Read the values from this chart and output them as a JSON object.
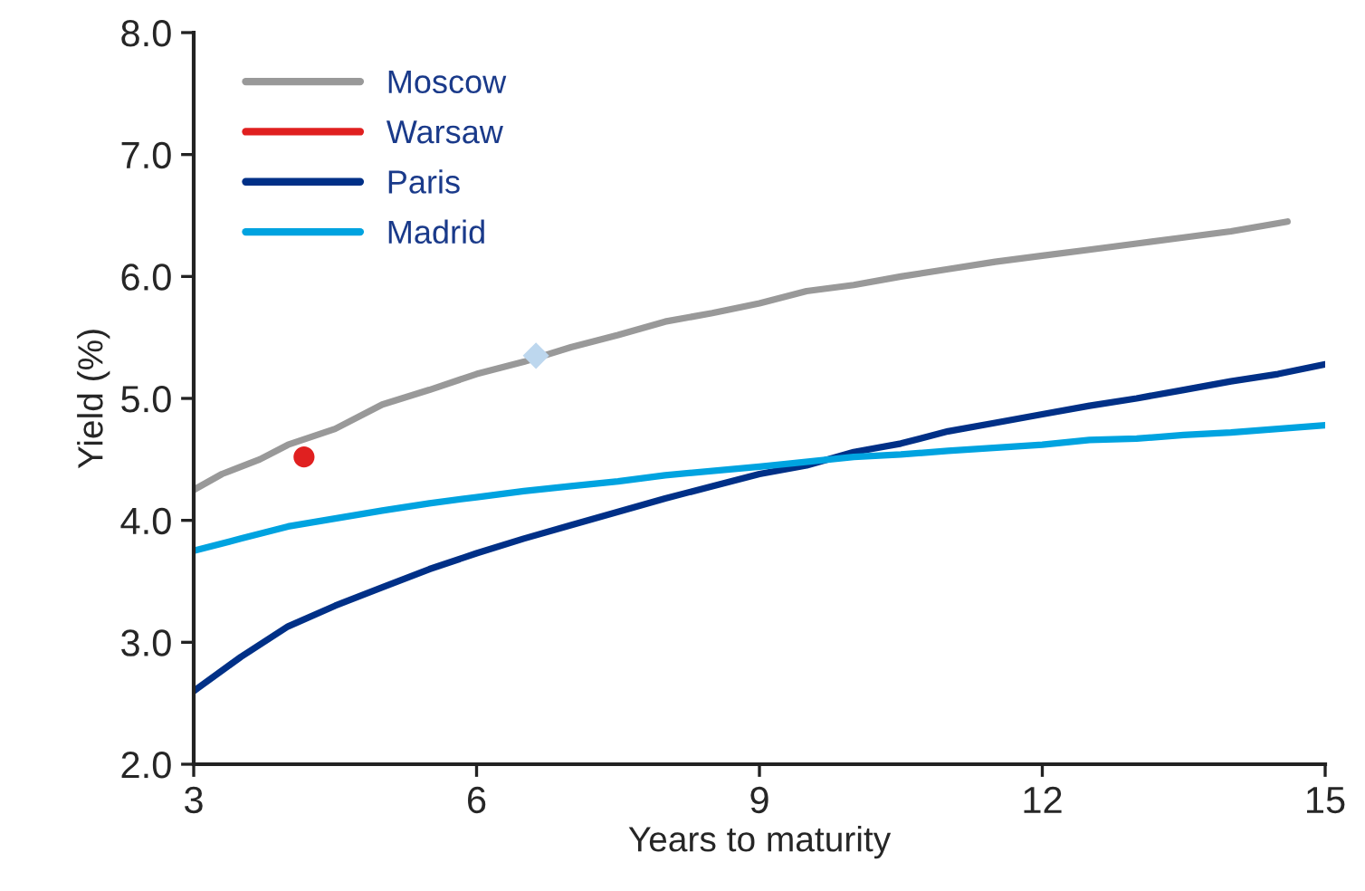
{
  "chart_data": {
    "type": "line",
    "xlabel": "Years to maturity",
    "ylabel": "Yield (%)",
    "xlim": [
      3,
      15
    ],
    "xticks": [
      3,
      6,
      9,
      12,
      15
    ],
    "ylim": [
      2.0,
      8.0
    ],
    "yticks": [
      {
        "value": 2,
        "label": "2.0"
      },
      {
        "value": 3,
        "label": "3.0"
      },
      {
        "value": 4,
        "label": "4.0"
      },
      {
        "value": 5,
        "label": "5.0"
      },
      {
        "value": 6,
        "label": "6.0"
      },
      {
        "value": 7,
        "label": "7.0"
      },
      {
        "value": 8,
        "label": "8.0"
      }
    ],
    "grid": false,
    "legend": "top left",
    "series": [
      {
        "name": "Moscow",
        "color": "#999999",
        "x": [
          3,
          3.3,
          3.7,
          4,
          4.5,
          5,
          5.5,
          6,
          6.5,
          7,
          7.5,
          8,
          8.5,
          9,
          9.5,
          10,
          10.5,
          11,
          11.5,
          12,
          12.5,
          13,
          13.5,
          14,
          14.6
        ],
        "values": [
          4.25,
          4.38,
          4.5,
          4.62,
          4.75,
          4.95,
          5.07,
          5.2,
          5.3,
          5.42,
          5.52,
          5.63,
          5.7,
          5.78,
          5.88,
          5.93,
          6.0,
          6.06,
          6.12,
          6.17,
          6.22,
          6.27,
          6.32,
          6.37,
          6.45
        ]
      },
      {
        "name": "Warsaw",
        "type": "scatter",
        "marker": "circle",
        "color": "#e02020",
        "x": [
          4.17
        ],
        "values": [
          4.52
        ]
      },
      {
        "name": "Paris",
        "color": "#003087",
        "x": [
          3,
          3.5,
          4,
          4.5,
          5,
          5.5,
          6,
          6.5,
          7,
          7.5,
          8,
          8.5,
          9,
          9.5,
          10,
          10.5,
          11,
          11.5,
          12,
          12.5,
          13,
          13.5,
          14,
          14.5,
          15
        ],
        "values": [
          2.6,
          2.88,
          3.13,
          3.3,
          3.45,
          3.6,
          3.73,
          3.85,
          3.96,
          4.07,
          4.18,
          4.28,
          4.38,
          4.45,
          4.56,
          4.63,
          4.73,
          4.8,
          4.87,
          4.94,
          5.0,
          5.07,
          5.14,
          5.2,
          5.28
        ]
      },
      {
        "name": "Madrid",
        "color": "#00a3e0",
        "x": [
          3,
          3.5,
          4,
          5,
          5.5,
          6,
          6.5,
          7,
          7.5,
          8,
          9,
          10,
          10.5,
          11,
          12,
          12.5,
          13,
          13.5,
          14,
          15
        ],
        "values": [
          3.75,
          3.85,
          3.95,
          4.08,
          4.14,
          4.19,
          4.24,
          4.28,
          4.32,
          4.37,
          4.44,
          4.52,
          4.54,
          4.57,
          4.62,
          4.66,
          4.67,
          4.7,
          4.72,
          4.78
        ]
      },
      {
        "type": "scatter",
        "marker": "diamond",
        "color": "#bdd7ee",
        "x": [
          6.63
        ],
        "values": [
          5.35
        ]
      }
    ]
  }
}
